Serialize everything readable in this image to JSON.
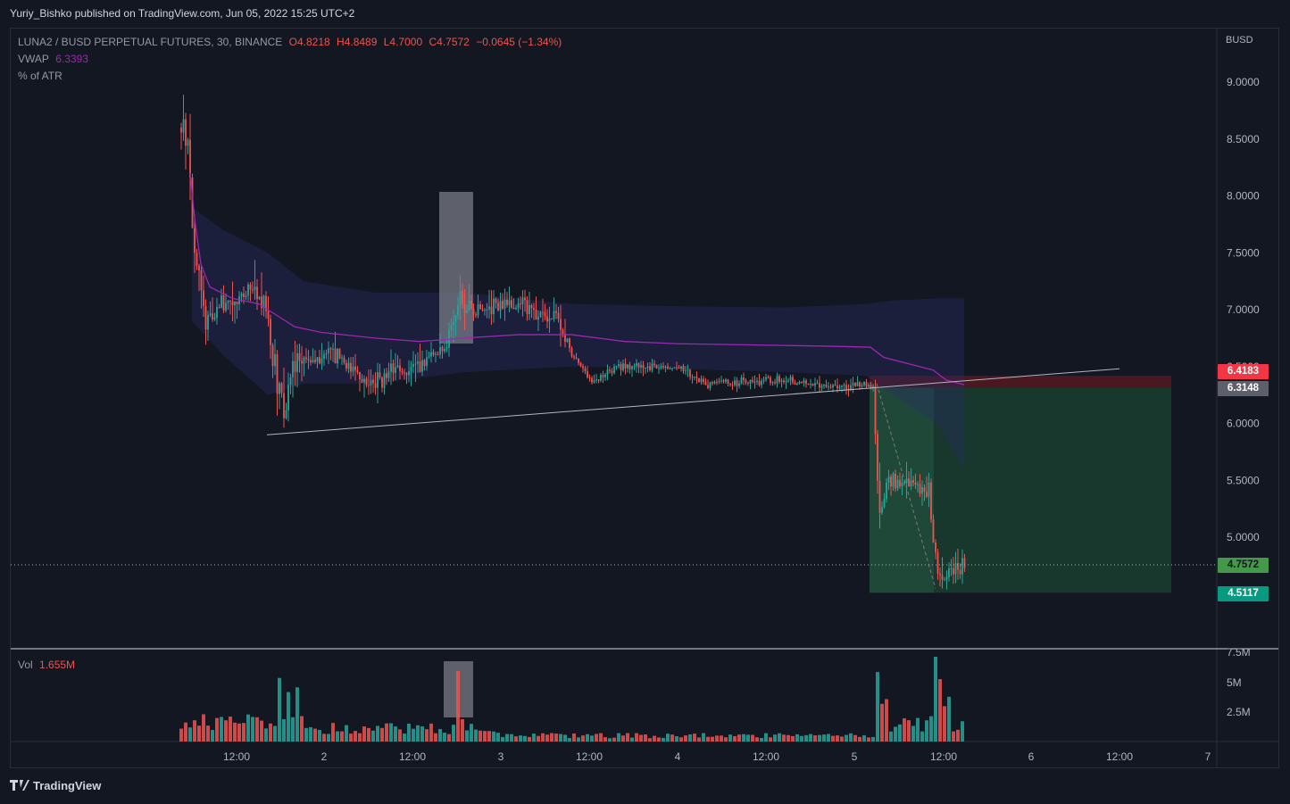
{
  "header": {
    "publisher": "Yuriy_Bishko published on TradingView.com, Jun 05, 2022 15:25 UTC+2"
  },
  "legend": {
    "symbol": "LUNA2 / BUSD PERPETUAL FUTURES, 30, BINANCE",
    "open": "O4.8218",
    "high": "H4.8489",
    "low": "L4.7000",
    "close": "C4.7572",
    "change": "−0.0645 (−1.34%)",
    "vwap_label": "VWAP",
    "vwap_value": "6.3393",
    "atr_label": "% of ATR",
    "vol_label": "Vol",
    "vol_value": "1.655M"
  },
  "footer": {
    "brand": "TradingView"
  },
  "price_tags": {
    "stop": "6.4183",
    "entry": "6.3148",
    "last": "4.7572",
    "target": "4.5117"
  },
  "colors": {
    "up": "#26a69a",
    "down": "#ef5350",
    "vwap": "#9c27b0",
    "background": "#131722",
    "grid_text": "#b2b5be",
    "profit_zone": "#1b4332",
    "loss_zone": "#5c1a22"
  },
  "chart_data": {
    "type": "candlestick",
    "currency_label": "BUSD",
    "y_ticks": [
      "9.0000",
      "8.5000",
      "8.0000",
      "7.5000",
      "7.0000",
      "6.5000",
      "6.0000",
      "5.5000",
      "5.0000"
    ],
    "ylim": [
      4.2,
      9.5
    ],
    "x_ticks": [
      "12:00",
      "2",
      "12:00",
      "3",
      "12:00",
      "4",
      "12:00",
      "5",
      "12:00",
      "6",
      "12:00",
      "7"
    ],
    "volume_ticks": [
      "7.5M",
      "5M",
      "2.5M"
    ],
    "vwap_last": 6.3393,
    "last_price": 4.7572,
    "short_position": {
      "stop": 6.4183,
      "entry": 6.3148,
      "target": 4.5117
    },
    "trendline_start_price": 5.9,
    "trendline_end_price": 6.48
  }
}
